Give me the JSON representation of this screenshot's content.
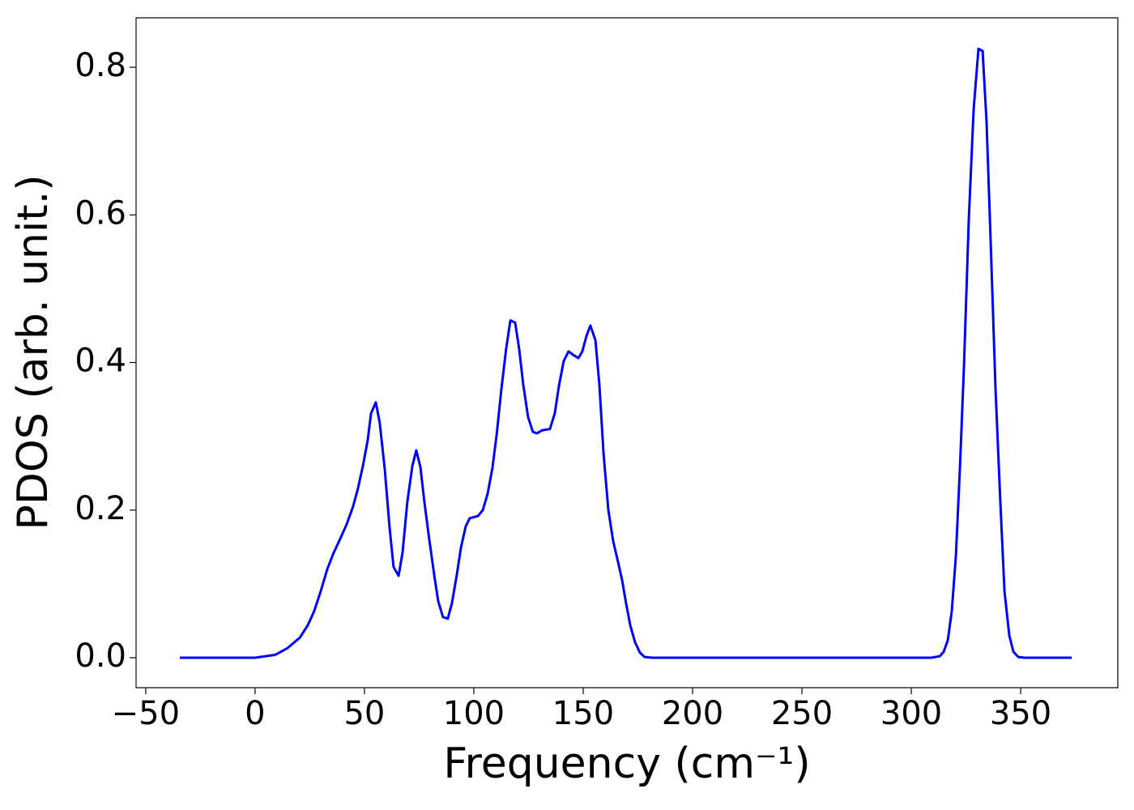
{
  "chart_data": {
    "type": "line",
    "xlabel": "Frequency (cm⁻¹)",
    "ylabel": "PDOS (arb. unit.)",
    "x": [
      -34.4,
      0,
      9.3,
      14.8,
      20.4,
      24.1,
      27,
      30,
      33,
      35.9,
      38.9,
      41.9,
      44.8,
      47,
      49.3,
      51.5,
      53,
      55.2,
      57,
      59.3,
      61.5,
      63.3,
      65.6,
      67.4,
      69.6,
      71.9,
      73.7,
      75.6,
      77.4,
      79.6,
      81.9,
      83.7,
      85.9,
      88.1,
      90,
      92.2,
      94.1,
      96.3,
      98.1,
      101.9,
      104.1,
      106.3,
      108.5,
      110.4,
      112.6,
      114.8,
      116.7,
      118.9,
      120.7,
      122.6,
      124.8,
      127,
      128.9,
      131.1,
      134.8,
      137,
      138.9,
      141.1,
      143.3,
      145.6,
      147.8,
      149.6,
      151.5,
      153.3,
      155.6,
      157.4,
      159.3,
      161.5,
      163.7,
      165.6,
      167.8,
      169.6,
      171.5,
      173.7,
      175.9,
      178.1,
      181.5,
      309,
      313,
      314.8,
      316.7,
      318.5,
      320.4,
      322.2,
      324.1,
      326.3,
      328.5,
      330.7,
      332.6,
      334.4,
      336.3,
      338.5,
      340.7,
      342.6,
      344.8,
      346.7,
      348.9,
      351.9,
      373.3
    ],
    "series": [
      {
        "name": "PDOS",
        "color": "#0000ff",
        "values": [
          0,
          0,
          0.004,
          0.013,
          0.027,
          0.044,
          0.063,
          0.09,
          0.12,
          0.142,
          0.161,
          0.181,
          0.205,
          0.229,
          0.26,
          0.295,
          0.331,
          0.346,
          0.318,
          0.255,
          0.176,
          0.123,
          0.111,
          0.142,
          0.211,
          0.26,
          0.281,
          0.258,
          0.211,
          0.161,
          0.112,
          0.077,
          0.055,
          0.053,
          0.074,
          0.112,
          0.149,
          0.178,
          0.189,
          0.192,
          0.2,
          0.222,
          0.257,
          0.301,
          0.364,
          0.419,
          0.457,
          0.454,
          0.419,
          0.37,
          0.326,
          0.306,
          0.304,
          0.308,
          0.31,
          0.331,
          0.368,
          0.402,
          0.415,
          0.41,
          0.406,
          0.415,
          0.436,
          0.45,
          0.43,
          0.37,
          0.277,
          0.2,
          0.158,
          0.134,
          0.105,
          0.074,
          0.044,
          0.021,
          0.007,
          0.001,
          0,
          0,
          0.002,
          0.008,
          0.024,
          0.063,
          0.139,
          0.255,
          0.397,
          0.595,
          0.743,
          0.825,
          0.822,
          0.726,
          0.562,
          0.364,
          0.211,
          0.09,
          0.03,
          0.008,
          0.001,
          0,
          0
        ]
      }
    ],
    "xlim": [
      -54.4,
      394.4
    ],
    "ylim": [
      -0.0406,
      0.867
    ],
    "xticks": [
      {
        "value": -50,
        "label": "−50"
      },
      0,
      50,
      100,
      150,
      200,
      250,
      300,
      350
    ],
    "yticks": [
      {
        "value": 0,
        "label": "0.0"
      },
      0.2,
      0.4,
      0.6,
      0.8
    ],
    "grid": false
  }
}
